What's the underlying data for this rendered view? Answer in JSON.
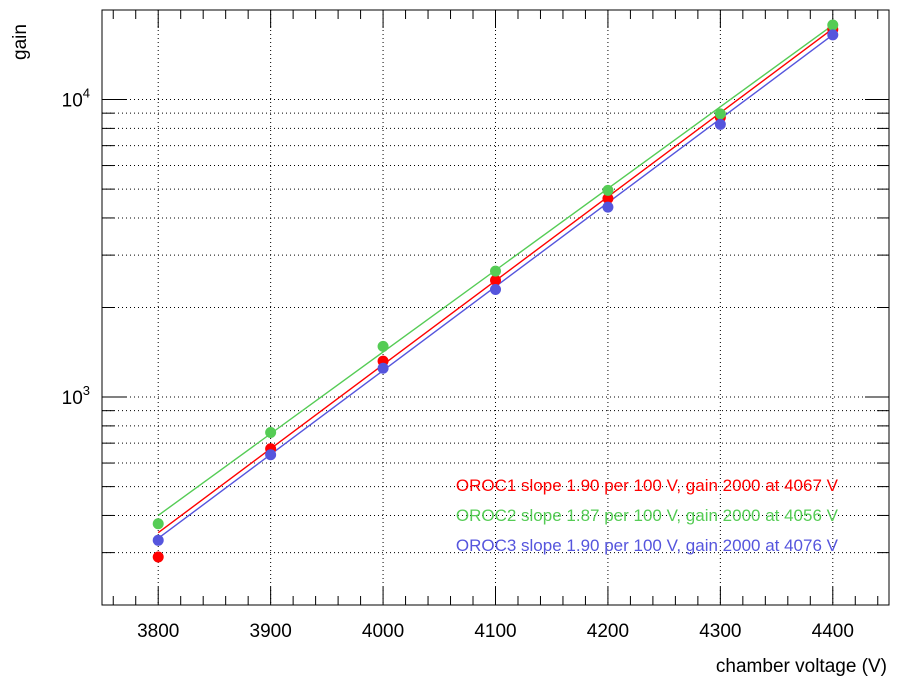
{
  "chart_data": {
    "type": "scatter",
    "title": "",
    "xlabel": "chamber voltage (V)",
    "ylabel": "gain",
    "xlim": [
      3750,
      4450
    ],
    "ylim": [
      200,
      20000
    ],
    "y_scale": "log",
    "grid": true,
    "x_ticks": [
      3800,
      3900,
      4000,
      4100,
      4200,
      4300,
      4400
    ],
    "y_tick_labels": [
      {
        "value": 1000,
        "base": "10",
        "exp": "3"
      },
      {
        "value": 10000,
        "base": "10",
        "exp": "4"
      }
    ],
    "series": [
      {
        "name": "OROC1 slope 1.90 per 100 V, gain 2000 at 4067 V",
        "color": "#ff0000",
        "x": [
          3800,
          3900,
          4000,
          4100,
          4200,
          4300,
          4400
        ],
        "y": [
          290,
          670,
          1320,
          2470,
          4650,
          8700,
          17200
        ],
        "fit": [
          [
            3800,
            350
          ],
          [
            4400,
            17300
          ]
        ]
      },
      {
        "name": "OROC2 slope 1.87 per 100 V, gain 2000 at 4056 V",
        "color": "#55cc55",
        "x": [
          3800,
          3900,
          4000,
          4100,
          4200,
          4300,
          4400
        ],
        "y": [
          375,
          760,
          1480,
          2650,
          4950,
          8950,
          17800
        ],
        "fit": [
          [
            3800,
            400
          ],
          [
            4400,
            17800
          ]
        ]
      },
      {
        "name": "OROC3 slope 1.90 per 100 V, gain 2000 at 4076 V",
        "color": "#5555dd",
        "x": [
          3800,
          3900,
          4000,
          4100,
          4200,
          4300,
          4400
        ],
        "y": [
          330,
          640,
          1250,
          2300,
          4350,
          8250,
          16500
        ],
        "fit": [
          [
            3800,
            335
          ],
          [
            4400,
            16500
          ]
        ]
      }
    ]
  }
}
